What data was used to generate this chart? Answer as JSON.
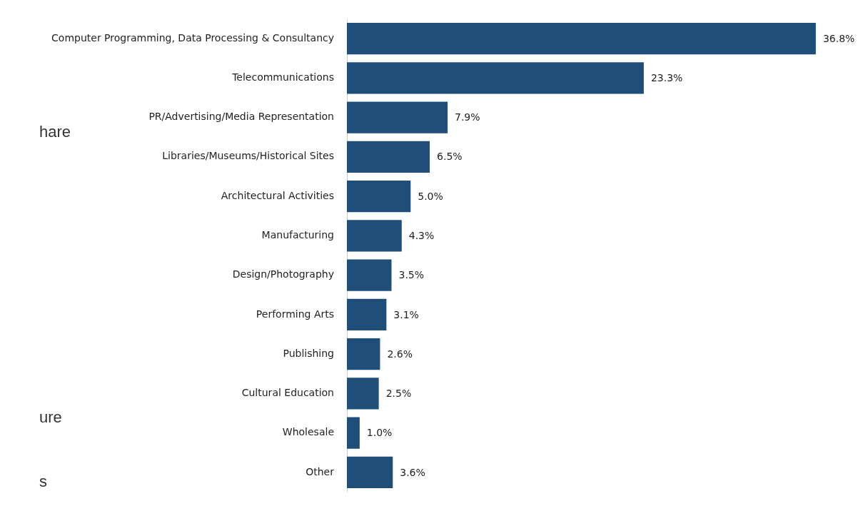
{
  "chart_data": {
    "type": "bar",
    "orientation": "horizontal",
    "categories": [
      "Computer Programming, Data Processing & Consultancy",
      "Telecommunications",
      "PR/Advertising/Media Representation",
      "Libraries/Museums/Historical Sites",
      "Architectural Activities",
      "Manufacturing",
      "Design/Photography",
      "Performing Arts",
      "Publishing",
      "Cultural Education",
      "Wholesale",
      "Other"
    ],
    "values": [
      36.8,
      23.3,
      7.9,
      6.5,
      5.0,
      4.3,
      3.5,
      3.1,
      2.6,
      2.5,
      1.0,
      3.6
    ],
    "value_labels": [
      "36.8%",
      "23.3%",
      "7.9%",
      "6.5%",
      "5.0%",
      "4.3%",
      "3.5%",
      "3.1%",
      "2.6%",
      "2.5%",
      "1.0%",
      "3.6%"
    ],
    "color": "#1f4e79",
    "legend": false,
    "tick_labels": "y",
    "annotations": [
      "hare",
      "ure",
      "s"
    ]
  }
}
